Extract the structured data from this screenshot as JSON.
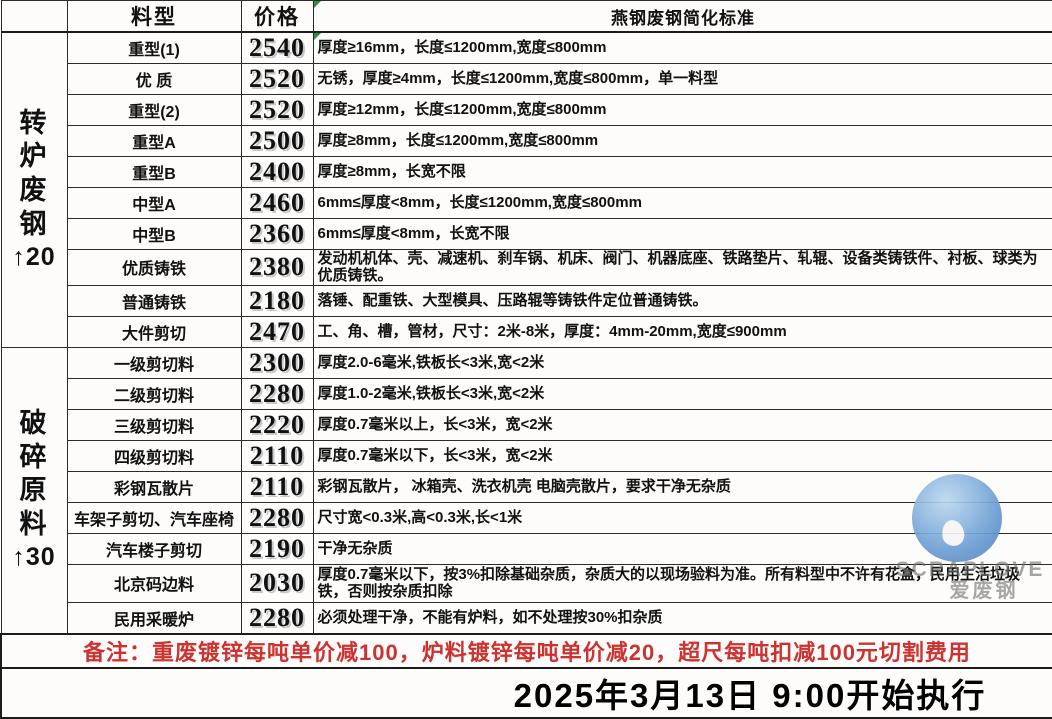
{
  "header": {
    "material": "料型",
    "price": "价格",
    "standard": "燕钢废钢简化标准"
  },
  "groups": [
    {
      "line1": "转炉",
      "line2": "废钢",
      "change": "↑20"
    },
    {
      "line1": "破碎",
      "line2": "原料",
      "change": "↑30"
    }
  ],
  "rows": [
    {
      "material": "重型(1)",
      "price": "2540",
      "standard": "厚度≥16mm，长度≤1200mm,宽度≤800mm"
    },
    {
      "material": "优 质",
      "price": "2520",
      "standard": "无锈，厚度≥4mm，长度≤1200mm,宽度≤800mm，单一料型"
    },
    {
      "material": "重型(2)",
      "price": "2520",
      "standard": "厚度≥12mm，长度≤1200mm,宽度≤800mm"
    },
    {
      "material": "重型A",
      "price": "2500",
      "standard": "厚度≥8mm，长度≤1200mm,宽度≤800mm"
    },
    {
      "material": "重型B",
      "price": "2400",
      "standard": "厚度≥8mm，长宽不限"
    },
    {
      "material": "中型A",
      "price": "2460",
      "standard": "6mm≤厚度<8mm，长度≤1200mm,宽度≤800mm"
    },
    {
      "material": "中型B",
      "price": "2360",
      "standard": "6mm≤厚度<8mm，长宽不限"
    },
    {
      "material": "优质铸铁",
      "price": "2380",
      "standard": "发动机机体、壳、减速机、刹车锅、机床、阀门、机器底座、铁路垫片、轧辊、设备类铸铁件、衬板、球类为优质铸铁。"
    },
    {
      "material": "普通铸铁",
      "price": "2180",
      "standard": "落锤、配重铁、大型模具、压路辊等铸铁件定位普通铸铁。"
    },
    {
      "material": "大件剪切",
      "price": "2470",
      "standard": "工、角、槽，管材，尺寸：2米-8米，厚度：4mm-20mm,宽度≤900mm"
    },
    {
      "material": "一级剪切料",
      "price": "2300",
      "standard": "厚度2.0-6毫米,铁板长<3米,宽<2米"
    },
    {
      "material": "二级剪切料",
      "price": "2280",
      "standard": "厚度1.0-2毫米,铁板长<3米,宽<2米"
    },
    {
      "material": "三级剪切料",
      "price": "2220",
      "standard": "厚度0.7毫米以上，长<3米，宽<2米"
    },
    {
      "material": "四级剪切料",
      "price": "2110",
      "standard": "厚度0.7毫米以下，长<3米，宽<2米"
    },
    {
      "material": "彩钢瓦散片",
      "price": "2110",
      "standard": "彩钢瓦散片， 冰箱壳、洗衣机壳 电脑壳散片，要求干净无杂质"
    },
    {
      "material": "车架子剪切、汽车座椅",
      "price": "2280",
      "standard": "尺寸宽<0.3米,高<0.3米,长<1米"
    },
    {
      "material": "汽车楼子剪切",
      "price": "2190",
      "standard": "干净无杂质"
    },
    {
      "material": "北京码边料",
      "price": "2030",
      "standard": "厚度0.7毫米以下，按3%扣除基础杂质，杂质大的以现场验料为准。所有料型中不许有花盒，民用生活垃圾铁，否则按杂质扣除"
    },
    {
      "material": "民用采暖炉",
      "price": "2280",
      "standard": "必须处理干净，不能有炉料，如不处理按30%扣杂质"
    }
  ],
  "note": "备注：重废镀锌每吨单价减100，炉料镀锌每吨单价减20，超尺每吨扣减100元切割费用",
  "footer_date": "2025年3月13日 9:00开始执行",
  "watermark": {
    "brand": "SCRAPLOVE",
    "brand_cn": "爱废钢"
  },
  "colors": {
    "price_red": "#d22d26",
    "group_label_red": "#c43527",
    "note_red": "#cc3330",
    "marker_green": "#2f8f3a",
    "watermark_blue": "#6d9fd4"
  }
}
